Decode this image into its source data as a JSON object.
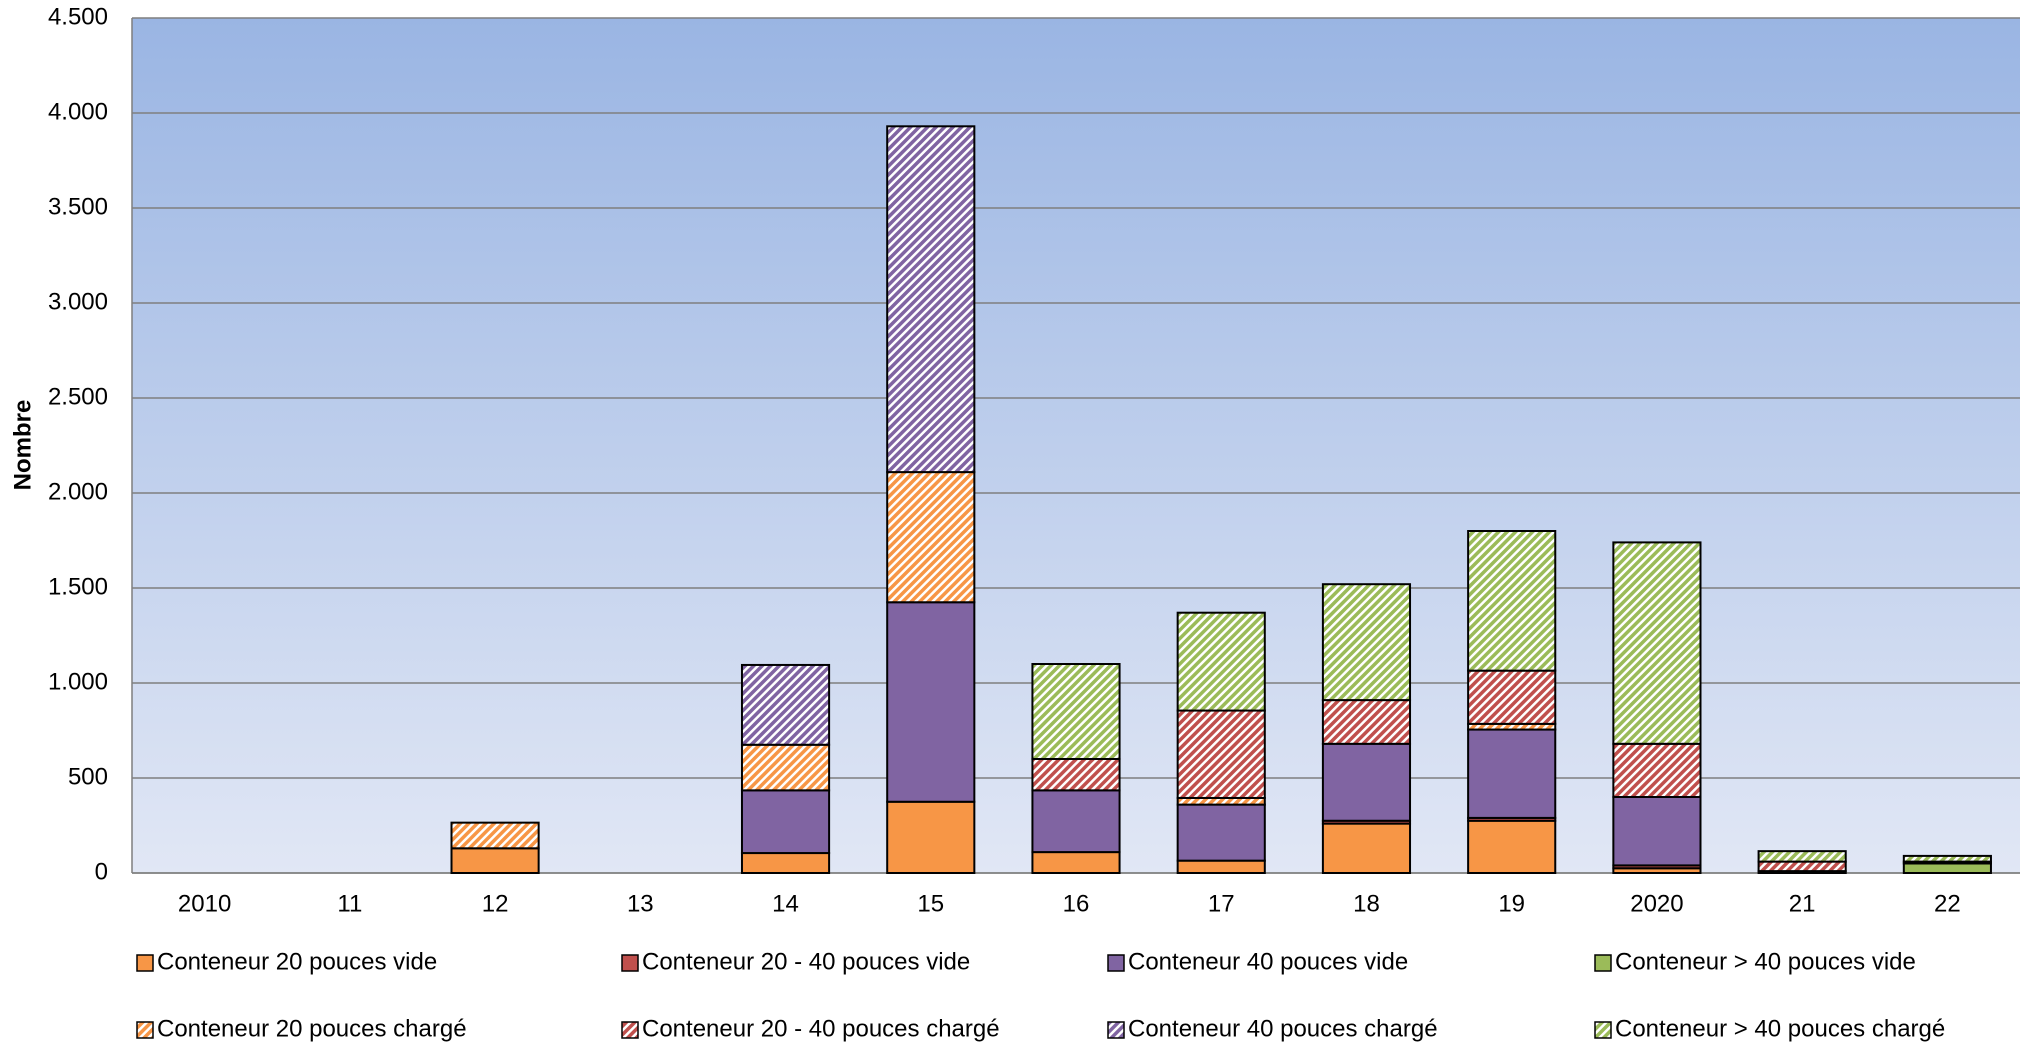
{
  "chart_data": {
    "type": "bar",
    "stacked": true,
    "y_label": "Nombre",
    "categories": [
      "2010",
      "11",
      "12",
      "13",
      "14",
      "15",
      "16",
      "17",
      "18",
      "19",
      "2020",
      "21",
      "22"
    ],
    "series": [
      {
        "name": "Conteneur 20 pouces vide",
        "color": "#f79646",
        "hatched": false,
        "values": [
          0,
          0,
          130,
          0,
          105,
          375,
          110,
          65,
          260,
          275,
          25,
          10,
          0
        ]
      },
      {
        "name": "Conteneur 20 - 40 pouces vide",
        "color": "#c0504d",
        "hatched": false,
        "values": [
          0,
          0,
          0,
          0,
          0,
          0,
          0,
          0,
          15,
          15,
          15,
          0,
          0
        ]
      },
      {
        "name": "Conteneur 40 pouces vide",
        "color": "#8064a2",
        "hatched": false,
        "values": [
          0,
          0,
          0,
          0,
          330,
          1050,
          325,
          295,
          405,
          465,
          360,
          0,
          0
        ]
      },
      {
        "name": "Conteneur > 40 pouces vide",
        "color": "#9bbb59",
        "hatched": false,
        "values": [
          0,
          0,
          0,
          0,
          0,
          0,
          0,
          0,
          0,
          0,
          0,
          0,
          50
        ]
      },
      {
        "name": "Conteneur 20 pouces chargé",
        "color": "#f79646",
        "hatched": true,
        "values": [
          0,
          0,
          135,
          0,
          240,
          685,
          0,
          35,
          0,
          30,
          0,
          0,
          0
        ]
      },
      {
        "name": "Conteneur 20 - 40 pouces chargé",
        "color": "#c0504d",
        "hatched": true,
        "values": [
          0,
          0,
          0,
          0,
          0,
          0,
          165,
          460,
          230,
          280,
          280,
          50,
          10
        ]
      },
      {
        "name": "Conteneur 40 pouces chargé",
        "color": "#8064a2",
        "hatched": true,
        "values": [
          0,
          0,
          0,
          0,
          420,
          1820,
          0,
          0,
          0,
          0,
          0,
          0,
          0
        ]
      },
      {
        "name": "Conteneur > 40 pouces chargé",
        "color": "#9bbb59",
        "hatched": true,
        "values": [
          0,
          0,
          0,
          0,
          0,
          0,
          500,
          515,
          610,
          735,
          1060,
          55,
          30
        ]
      }
    ],
    "ylim": [
      0,
      4500
    ],
    "yticks": [
      0,
      500,
      {
        "value": 1000,
        "label": "1.000"
      },
      {
        "value": 1500,
        "label": "1.500"
      },
      {
        "value": 2000,
        "label": "2.000"
      },
      {
        "value": 2500,
        "label": "2.500"
      },
      {
        "value": 3000,
        "label": "3.000"
      },
      {
        "value": 3500,
        "label": "3.500"
      },
      {
        "value": 4000,
        "label": "4.000"
      },
      {
        "value": 4500,
        "label": "4.500"
      }
    ],
    "grid": true
  }
}
